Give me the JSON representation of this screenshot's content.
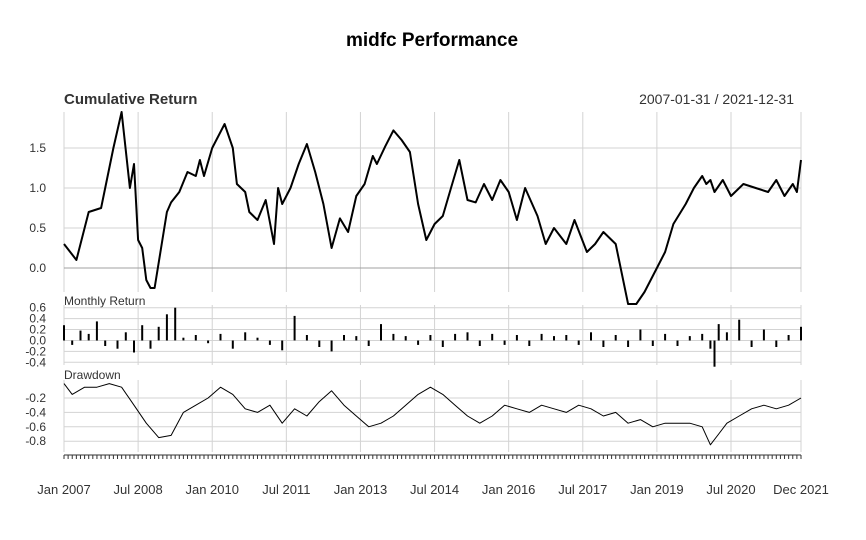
{
  "chart_data": {
    "type": "line",
    "title": "midfc Performance",
    "date_range": "2007-01-31 / 2021-12-31",
    "x_tick_labels": [
      "Jan 2007",
      "Jul 2008",
      "Jan 2010",
      "Jul 2011",
      "Jan 2013",
      "Jul 2014",
      "Jan 2016",
      "Jul 2017",
      "Jan 2019",
      "Jul 2020",
      "Dec 2021"
    ],
    "x_tick_dates": [
      "2007-01",
      "2008-07",
      "2010-01",
      "2011-07",
      "2013-01",
      "2014-07",
      "2016-01",
      "2017-07",
      "2019-01",
      "2020-07",
      "2021-12"
    ],
    "grid": true,
    "panels": [
      {
        "name": "Cumulative Return",
        "type": "line",
        "ylim": [
          -0.3,
          1.95
        ],
        "yticks": [
          "0.0",
          "0.5",
          "1.0",
          "1.5"
        ],
        "series": [
          {
            "name": "midfc",
            "color": "#000000",
            "x": [
              "2007-01",
              "2007-04",
              "2007-07",
              "2007-10",
              "2008-01",
              "2008-03",
              "2008-05",
              "2008-06",
              "2008-07",
              "2008-08",
              "2008-09",
              "2008-10",
              "2008-11",
              "2009-02",
              "2009-03",
              "2009-05",
              "2009-07",
              "2009-09",
              "2009-10",
              "2009-11",
              "2010-01",
              "2010-04",
              "2010-06",
              "2010-07",
              "2010-09",
              "2010-10",
              "2010-12",
              "2011-02",
              "2011-04",
              "2011-05",
              "2011-06",
              "2011-08",
              "2011-10",
              "2011-12",
              "2012-02",
              "2012-04",
              "2012-06",
              "2012-08",
              "2012-10",
              "2012-12",
              "2013-02",
              "2013-04",
              "2013-05",
              "2013-07",
              "2013-09",
              "2013-11",
              "2014-01",
              "2014-03",
              "2014-05",
              "2014-07",
              "2014-09",
              "2014-11",
              "2015-01",
              "2015-03",
              "2015-05",
              "2015-07",
              "2015-09",
              "2015-11",
              "2016-01",
              "2016-03",
              "2016-05",
              "2016-08",
              "2016-10",
              "2016-12",
              "2017-03",
              "2017-05",
              "2017-08",
              "2017-10",
              "2017-12",
              "2018-03",
              "2018-06",
              "2018-08",
              "2018-10",
              "2019-01",
              "2019-03",
              "2019-05",
              "2019-08",
              "2019-10",
              "2019-12",
              "2020-01",
              "2020-02",
              "2020-03",
              "2020-05",
              "2020-07",
              "2020-10",
              "2021-01",
              "2021-04",
              "2021-06",
              "2021-08",
              "2021-10",
              "2021-11",
              "2021-12"
            ],
            "values": [
              0.3,
              0.1,
              0.7,
              0.75,
              1.5,
              1.95,
              1.0,
              1.3,
              0.35,
              0.25,
              -0.15,
              -0.25,
              -0.25,
              0.7,
              0.82,
              0.95,
              1.2,
              1.15,
              1.35,
              1.15,
              1.5,
              1.8,
              1.5,
              1.05,
              0.95,
              0.7,
              0.6,
              0.85,
              0.3,
              1.0,
              0.8,
              1.0,
              1.3,
              1.55,
              1.2,
              0.8,
              0.25,
              0.62,
              0.45,
              0.9,
              1.05,
              1.4,
              1.3,
              1.52,
              1.72,
              1.6,
              1.45,
              0.8,
              0.35,
              0.55,
              0.65,
              1.0,
              1.35,
              0.85,
              0.82,
              1.05,
              0.85,
              1.1,
              0.95,
              0.6,
              1.0,
              0.65,
              0.3,
              0.5,
              0.3,
              0.6,
              0.2,
              0.3,
              0.45,
              0.3,
              -0.45,
              -0.45,
              -0.3,
              0.0,
              0.2,
              0.55,
              0.8,
              1.0,
              1.15,
              1.05,
              1.1,
              0.95,
              1.1,
              0.9,
              1.05,
              1.0,
              0.95,
              1.1,
              0.9,
              1.05,
              0.95,
              1.35
            ]
          }
        ]
      },
      {
        "name": "Monthly Return",
        "type": "bar",
        "ylim": [
          -0.45,
          0.65
        ],
        "yticks": [
          "-0.4",
          "-0.2",
          "0.0",
          "0.2",
          "0.4",
          "0.6"
        ],
        "bar_color": "#000000",
        "series": [
          {
            "name": "midfc",
            "x": [
              "2007-01",
              "2007-03",
              "2007-05",
              "2007-07",
              "2007-09",
              "2007-11",
              "2008-02",
              "2008-04",
              "2008-06",
              "2008-08",
              "2008-10",
              "2008-12",
              "2009-02",
              "2009-04",
              "2009-06",
              "2009-09",
              "2009-12",
              "2010-03",
              "2010-06",
              "2010-09",
              "2010-12",
              "2011-03",
              "2011-06",
              "2011-09",
              "2011-12",
              "2012-03",
              "2012-06",
              "2012-09",
              "2012-12",
              "2013-03",
              "2013-06",
              "2013-09",
              "2013-12",
              "2014-03",
              "2014-06",
              "2014-09",
              "2014-12",
              "2015-03",
              "2015-06",
              "2015-09",
              "2015-12",
              "2016-03",
              "2016-06",
              "2016-09",
              "2016-12",
              "2017-03",
              "2017-06",
              "2017-09",
              "2017-12",
              "2018-03",
              "2018-06",
              "2018-09",
              "2018-12",
              "2019-03",
              "2019-06",
              "2019-09",
              "2019-12",
              "2020-02",
              "2020-03",
              "2020-04",
              "2020-06",
              "2020-09",
              "2020-12",
              "2021-03",
              "2021-06",
              "2021-09",
              "2021-12"
            ],
            "values": [
              0.28,
              -0.08,
              0.18,
              0.12,
              0.35,
              -0.1,
              -0.15,
              0.15,
              -0.22,
              0.28,
              -0.15,
              0.25,
              0.48,
              0.6,
              0.05,
              0.1,
              -0.05,
              0.12,
              -0.15,
              0.15,
              0.05,
              -0.08,
              -0.18,
              0.45,
              0.1,
              -0.12,
              -0.2,
              0.1,
              0.08,
              -0.1,
              0.3,
              0.12,
              0.08,
              -0.08,
              0.1,
              -0.12,
              0.12,
              0.15,
              -0.1,
              0.12,
              -0.08,
              0.1,
              -0.1,
              0.12,
              0.08,
              0.1,
              -0.08,
              0.15,
              -0.12,
              0.1,
              -0.12,
              0.2,
              -0.1,
              0.12,
              -0.1,
              0.08,
              0.12,
              -0.15,
              -0.48,
              0.3,
              0.15,
              0.38,
              -0.12,
              0.2,
              -0.12,
              0.1,
              0.25
            ]
          }
        ]
      },
      {
        "name": "Drawdown",
        "type": "line",
        "ylim": [
          -0.95,
          0.05
        ],
        "yticks": [
          "-0.2",
          "-0.4",
          "-0.6",
          "-0.8"
        ],
        "series": [
          {
            "name": "midfc",
            "color": "#000000",
            "x": [
              "2007-01",
              "2007-03",
              "2007-06",
              "2007-09",
              "2007-12",
              "2008-03",
              "2008-06",
              "2008-09",
              "2008-12",
              "2009-03",
              "2009-06",
              "2009-09",
              "2009-12",
              "2010-03",
              "2010-06",
              "2010-09",
              "2010-12",
              "2011-03",
              "2011-06",
              "2011-09",
              "2011-12",
              "2012-03",
              "2012-06",
              "2012-09",
              "2012-12",
              "2013-03",
              "2013-06",
              "2013-09",
              "2013-12",
              "2014-03",
              "2014-06",
              "2014-09",
              "2014-12",
              "2015-03",
              "2015-06",
              "2015-09",
              "2015-12",
              "2016-03",
              "2016-06",
              "2016-09",
              "2016-12",
              "2017-03",
              "2017-06",
              "2017-09",
              "2017-12",
              "2018-03",
              "2018-06",
              "2018-09",
              "2018-12",
              "2019-03",
              "2019-06",
              "2019-09",
              "2019-12",
              "2020-02",
              "2020-04",
              "2020-06",
              "2020-09",
              "2020-12",
              "2021-03",
              "2021-06",
              "2021-09",
              "2021-12"
            ],
            "values": [
              0.0,
              -0.15,
              -0.05,
              -0.05,
              0.0,
              -0.05,
              -0.3,
              -0.55,
              -0.75,
              -0.72,
              -0.4,
              -0.3,
              -0.2,
              -0.05,
              -0.15,
              -0.35,
              -0.4,
              -0.3,
              -0.55,
              -0.35,
              -0.45,
              -0.25,
              -0.1,
              -0.3,
              -0.45,
              -0.6,
              -0.55,
              -0.45,
              -0.3,
              -0.15,
              -0.05,
              -0.15,
              -0.3,
              -0.45,
              -0.55,
              -0.45,
              -0.3,
              -0.35,
              -0.4,
              -0.3,
              -0.35,
              -0.4,
              -0.3,
              -0.35,
              -0.45,
              -0.4,
              -0.55,
              -0.5,
              -0.6,
              -0.55,
              -0.55,
              -0.55,
              -0.6,
              -0.85,
              -0.7,
              -0.55,
              -0.45,
              -0.35,
              -0.3,
              -0.35,
              -0.3,
              -0.2
            ]
          }
        ]
      }
    ]
  }
}
